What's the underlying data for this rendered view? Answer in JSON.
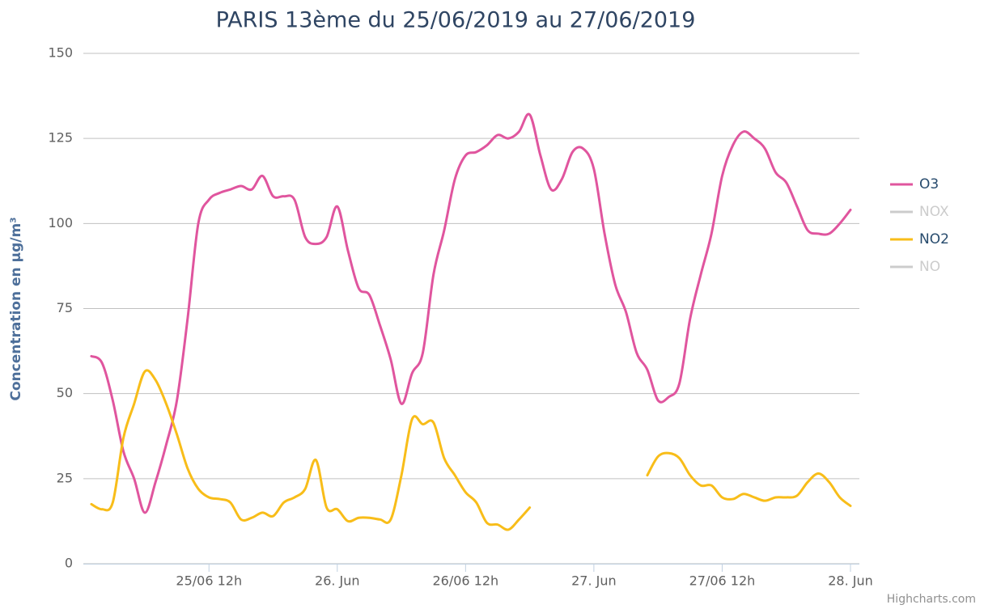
{
  "chart_data": {
    "type": "line",
    "title": "PARIS 13ème du 25/06/2019 au 27/06/2019",
    "y_label": "Concentration en µg/m³",
    "credits": "Highcharts.com",
    "x": [
      "2019-06-25T01:00",
      "2019-06-25T02:00",
      "2019-06-25T03:00",
      "2019-06-25T04:00",
      "2019-06-25T05:00",
      "2019-06-25T06:00",
      "2019-06-25T07:00",
      "2019-06-25T08:00",
      "2019-06-25T09:00",
      "2019-06-25T10:00",
      "2019-06-25T11:00",
      "2019-06-25T12:00",
      "2019-06-25T13:00",
      "2019-06-25T14:00",
      "2019-06-25T15:00",
      "2019-06-25T16:00",
      "2019-06-25T17:00",
      "2019-06-25T18:00",
      "2019-06-25T19:00",
      "2019-06-25T20:00",
      "2019-06-25T21:00",
      "2019-06-25T22:00",
      "2019-06-25T23:00",
      "2019-06-26T00:00",
      "2019-06-26T01:00",
      "2019-06-26T02:00",
      "2019-06-26T03:00",
      "2019-06-26T04:00",
      "2019-06-26T05:00",
      "2019-06-26T06:00",
      "2019-06-26T07:00",
      "2019-06-26T08:00",
      "2019-06-26T09:00",
      "2019-06-26T10:00",
      "2019-06-26T11:00",
      "2019-06-26T12:00",
      "2019-06-26T13:00",
      "2019-06-26T14:00",
      "2019-06-26T15:00",
      "2019-06-26T16:00",
      "2019-06-26T17:00",
      "2019-06-26T18:00",
      "2019-06-26T19:00",
      "2019-06-26T20:00",
      "2019-06-26T21:00",
      "2019-06-26T22:00",
      "2019-06-26T23:00",
      "2019-06-27T00:00",
      "2019-06-27T01:00",
      "2019-06-27T02:00",
      "2019-06-27T03:00",
      "2019-06-27T04:00",
      "2019-06-27T05:00",
      "2019-06-27T06:00",
      "2019-06-27T07:00",
      "2019-06-27T08:00",
      "2019-06-27T09:00",
      "2019-06-27T10:00",
      "2019-06-27T11:00",
      "2019-06-27T12:00",
      "2019-06-27T13:00",
      "2019-06-27T14:00",
      "2019-06-27T15:00",
      "2019-06-27T16:00",
      "2019-06-27T17:00",
      "2019-06-27T18:00",
      "2019-06-27T19:00",
      "2019-06-27T20:00",
      "2019-06-27T21:00",
      "2019-06-27T22:00",
      "2019-06-27T23:00",
      "2019-06-28T00:00"
    ],
    "series": [
      {
        "name": "O3",
        "color": "#e0559e",
        "visible": true,
        "values": [
          61,
          59,
          48,
          33,
          25,
          15,
          24,
          35,
          48,
          72,
          100,
          107,
          109,
          110,
          111,
          110,
          114,
          108,
          108,
          107,
          96,
          94,
          96,
          105,
          92,
          81,
          79,
          70,
          60,
          47,
          56,
          62,
          85,
          98,
          113,
          120,
          121,
          123,
          126,
          125,
          127,
          132,
          120,
          110,
          113,
          121,
          122,
          116,
          97,
          82,
          74,
          62,
          57,
          48,
          49,
          53,
          72,
          85,
          97,
          114,
          123,
          127,
          125,
          122,
          115,
          112,
          105,
          98,
          97,
          97,
          100,
          104
        ]
      },
      {
        "name": "NOX",
        "color": "#cccccc",
        "visible": false,
        "values": [
          null,
          null,
          null,
          null,
          null,
          null,
          null,
          null,
          null,
          null,
          null,
          null,
          null,
          null,
          null,
          null,
          null,
          null,
          null,
          null,
          null,
          null,
          null,
          null,
          null,
          null,
          null,
          null,
          null,
          null,
          null,
          null,
          null,
          null,
          null,
          null,
          null,
          null,
          null,
          null,
          null,
          null,
          null,
          null,
          null,
          null,
          null,
          null,
          null,
          null,
          null,
          null,
          null,
          null,
          null,
          null,
          null,
          null,
          null,
          null,
          null,
          null,
          null,
          null,
          null,
          null,
          null,
          null,
          null,
          null,
          null,
          null
        ]
      },
      {
        "name": "NO2",
        "color": "#f8bd19",
        "visible": true,
        "values": [
          17.5,
          16,
          18,
          37,
          47,
          56.5,
          54,
          47,
          38,
          28,
          22,
          19.5,
          19,
          18,
          13,
          13.5,
          15,
          14,
          18,
          19.5,
          22,
          30.5,
          16.5,
          16,
          12.5,
          13.5,
          13.5,
          13,
          13,
          26,
          42.5,
          41,
          41.5,
          31,
          26,
          21,
          18,
          12,
          11.5,
          10,
          13,
          16.5,
          null,
          null,
          null,
          null,
          null,
          null,
          null,
          null,
          null,
          null,
          26,
          31.5,
          32.5,
          31,
          26,
          23,
          23,
          19.5,
          19,
          20.5,
          19.5,
          18.5,
          19.5,
          19.5,
          20,
          24,
          26.5,
          24,
          19.5,
          17
        ]
      },
      {
        "name": "NO",
        "color": "#cccccc",
        "visible": false,
        "values": [
          null,
          null,
          null,
          null,
          null,
          null,
          null,
          null,
          null,
          null,
          null,
          null,
          null,
          null,
          null,
          null,
          null,
          null,
          null,
          null,
          null,
          null,
          null,
          null,
          null,
          null,
          null,
          null,
          null,
          null,
          null,
          null,
          null,
          null,
          null,
          null,
          null,
          null,
          null,
          null,
          null,
          null,
          null,
          null,
          null,
          null,
          null,
          null,
          null,
          null,
          null,
          null,
          null,
          null,
          null,
          null,
          null,
          null,
          null,
          null,
          null,
          null,
          null,
          null,
          null,
          null,
          null,
          null,
          null,
          null,
          null,
          null
        ]
      }
    ],
    "xlim": [
      "2019-06-25T00:15",
      "2019-06-28T00:50"
    ],
    "xticks": [
      {
        "value": "2019-06-25T12:00",
        "label": "25/06 12h"
      },
      {
        "value": "2019-06-26T00:00",
        "label": "26. Jun"
      },
      {
        "value": "2019-06-26T12:00",
        "label": "26/06 12h"
      },
      {
        "value": "2019-06-27T00:00",
        "label": "27. Jun"
      },
      {
        "value": "2019-06-27T12:00",
        "label": "27/06 12h"
      },
      {
        "value": "2019-06-28T00:00",
        "label": "28. Jun"
      }
    ],
    "ylim": [
      0,
      150
    ],
    "yticks": [
      0,
      25,
      50,
      75,
      100,
      125,
      150
    ],
    "grid": true,
    "legend": "right"
  }
}
